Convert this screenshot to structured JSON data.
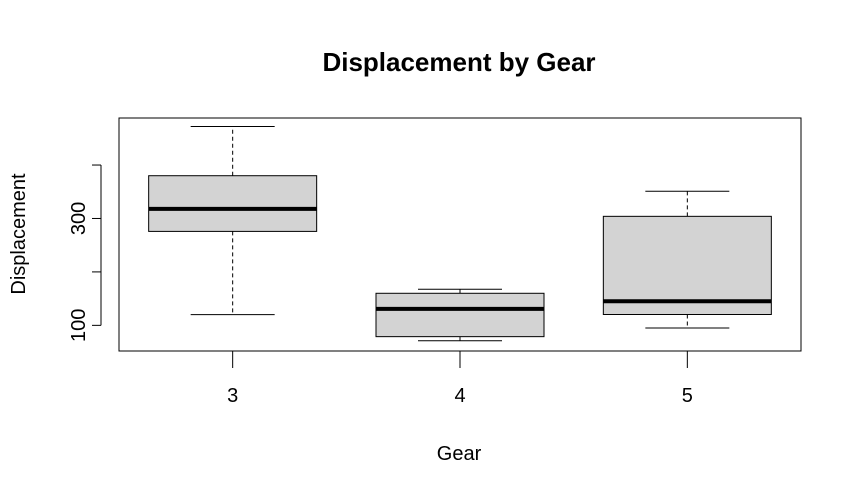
{
  "chart_data": {
    "type": "boxplot",
    "title": "Displacement by Gear",
    "xlabel": "Gear",
    "ylabel": "Displacement",
    "categories": [
      "3",
      "4",
      "5"
    ],
    "y_ticks": [
      100,
      200,
      300,
      400
    ],
    "y_tick_labels": [
      "100",
      "",
      "300",
      ""
    ],
    "ylim": [
      52,
      488
    ],
    "grid": false,
    "box_fill": "#d3d3d3",
    "boxes": [
      {
        "category": "3",
        "whisker_low": 120.1,
        "q1": 275.8,
        "median": 318.0,
        "q3": 380.0,
        "whisker_high": 472.0
      },
      {
        "category": "4",
        "whisker_low": 71.1,
        "q1": 78.85,
        "median": 130.9,
        "q3": 160.0,
        "whisker_high": 167.6
      },
      {
        "category": "5",
        "whisker_low": 95.1,
        "q1": 120.3,
        "median": 145.0,
        "q3": 304.0,
        "whisker_high": 351.0
      }
    ]
  }
}
